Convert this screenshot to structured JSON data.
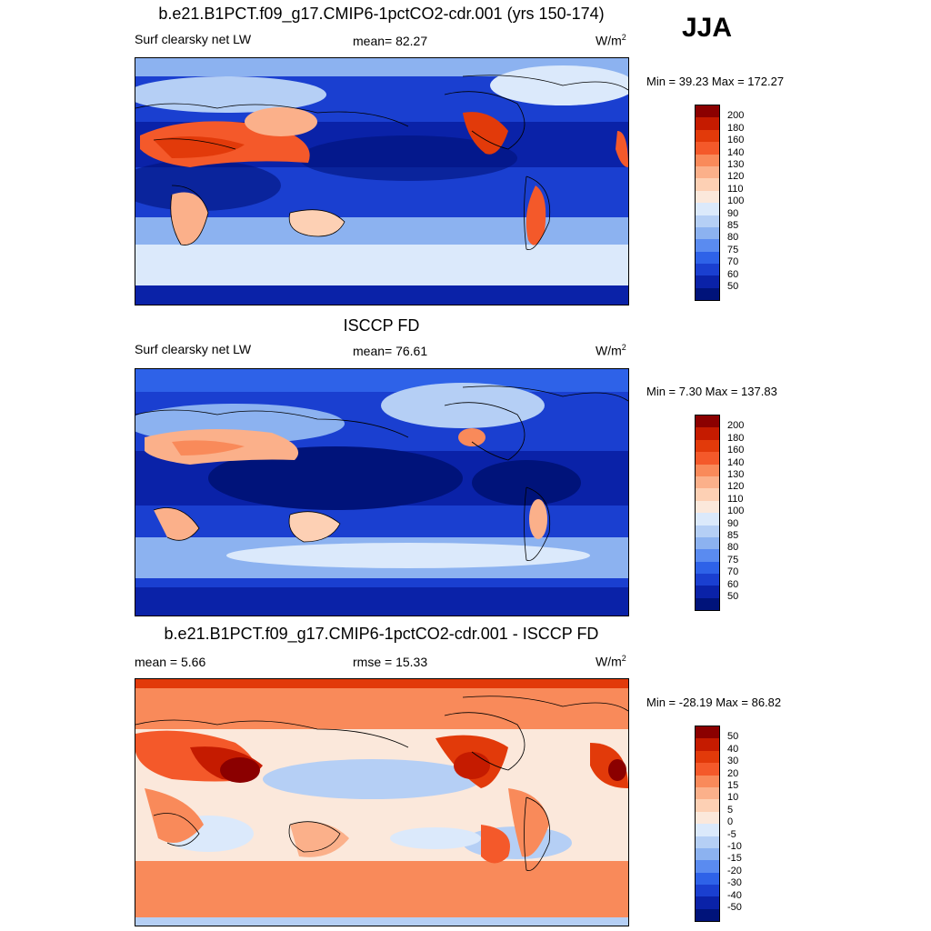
{
  "season": "JJA",
  "units": "W/m",
  "units_sup": "2",
  "panels": [
    {
      "title": "b.e21.B1PCT.f09_g17.CMIP6-1pctCO2-cdr.001 (yrs 150-174)",
      "variable": "Surf clearsky net LW",
      "stat_text": "mean=  82.27",
      "minmax": "Min =  39.23 Max = 172.27"
    },
    {
      "title": "ISCCP FD",
      "variable": "Surf clearsky net LW",
      "stat_text": "mean=  76.61",
      "minmax": "Min =   7.30 Max = 137.83"
    },
    {
      "title": "b.e21.B1PCT.f09_g17.CMIP6-1pctCO2-cdr.001 - ISCCP FD",
      "stat_left": "mean =   5.66",
      "stat_text": "rmse =  15.33",
      "minmax": "Min = -28.19 Max =  86.82"
    }
  ],
  "colorbar_abs": {
    "labels": [
      "200",
      "180",
      "160",
      "140",
      "130",
      "120",
      "110",
      "100",
      "90",
      "85",
      "80",
      "75",
      "70",
      "60",
      "50"
    ],
    "colors": [
      "#8b0000",
      "#c51b00",
      "#e23a0a",
      "#f4592a",
      "#f98a5a",
      "#fbb08a",
      "#fdd0b4",
      "#fbe8db",
      "#dbe9fb",
      "#b5cff5",
      "#8cb2f0",
      "#5a8bf0",
      "#2e62e8",
      "#1a3fd0",
      "#0a22a8",
      "#00137a"
    ]
  },
  "colorbar_diff": {
    "labels": [
      "50",
      "40",
      "30",
      "20",
      "15",
      "10",
      "5",
      "0",
      "-5",
      "-10",
      "-15",
      "-20",
      "-30",
      "-40",
      "-50"
    ],
    "colors": [
      "#8b0000",
      "#c51b00",
      "#e23a0a",
      "#f4592a",
      "#f98a5a",
      "#fbb08a",
      "#fdd0b4",
      "#fbe8db",
      "#dbe9fb",
      "#b5cff5",
      "#8cb2f0",
      "#5a8bf0",
      "#2e62e8",
      "#1a3fd0",
      "#0a22a8",
      "#00137a"
    ]
  },
  "chart_data": [
    {
      "type": "heatmap",
      "title": "b.e21.B1PCT.f09_g17.CMIP6-1pctCO2-cdr.001 (yrs 150-174)",
      "variable": "Surf clearsky net LW",
      "units": "W/m2",
      "mean": 82.27,
      "min": 39.23,
      "max": 172.27,
      "levels": [
        50,
        60,
        70,
        75,
        80,
        85,
        90,
        100,
        110,
        120,
        130,
        140,
        160,
        180,
        200
      ]
    },
    {
      "type": "heatmap",
      "title": "ISCCP FD",
      "variable": "Surf clearsky net LW",
      "units": "W/m2",
      "mean": 76.61,
      "min": 7.3,
      "max": 137.83,
      "levels": [
        50,
        60,
        70,
        75,
        80,
        85,
        90,
        100,
        110,
        120,
        130,
        140,
        160,
        180,
        200
      ]
    },
    {
      "type": "heatmap",
      "title": "b.e21.B1PCT.f09_g17.CMIP6-1pctCO2-cdr.001 - ISCCP FD",
      "units": "W/m2",
      "mean": 5.66,
      "rmse": 15.33,
      "min": -28.19,
      "max": 86.82,
      "levels": [
        -50,
        -40,
        -30,
        -20,
        -15,
        -10,
        -5,
        0,
        5,
        10,
        15,
        20,
        30,
        40,
        50
      ]
    }
  ]
}
